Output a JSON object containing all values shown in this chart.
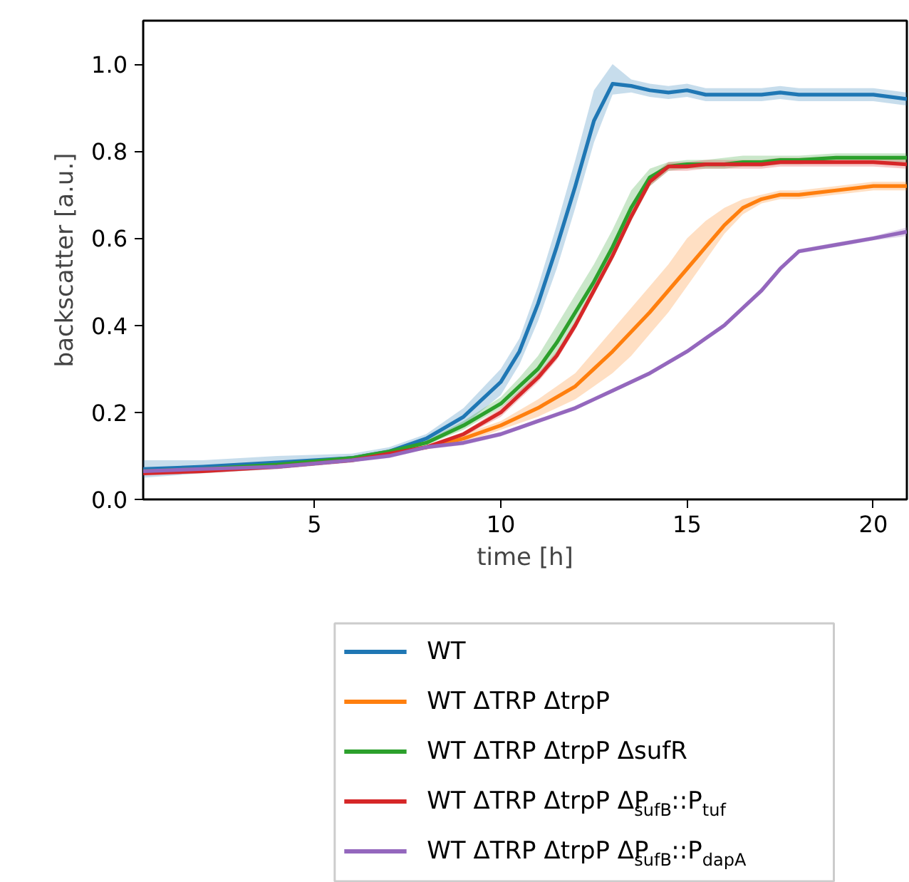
{
  "chart_data": {
    "type": "line",
    "xlabel": "time [h]",
    "ylabel": "backscatter [a.u.]",
    "xlim": [
      0.4,
      20.9
    ],
    "ylim": [
      0,
      1.1
    ],
    "xticks": [
      5,
      10,
      15,
      20
    ],
    "yticks": [
      {
        "value": 0,
        "label": "0.0"
      },
      0.2,
      0.4,
      0.6,
      0.8,
      {
        "value": 1,
        "label": "1.0"
      }
    ],
    "legend": "bottom",
    "line_style": "solid",
    "x": [
      0.4,
      2,
      4,
      6,
      7,
      8,
      9,
      10,
      10.5,
      11,
      11.5,
      12,
      12.5,
      13,
      13.5,
      14,
      14.5,
      15,
      15.5,
      16,
      16.5,
      17,
      17.5,
      18,
      19,
      20,
      20.9
    ],
    "series": [
      {
        "name": "WT",
        "color": "#1f77b4",
        "values": [
          0.07,
          0.075,
          0.085,
          0.095,
          0.11,
          0.14,
          0.19,
          0.27,
          0.34,
          0.45,
          0.58,
          0.72,
          0.87,
          0.955,
          0.95,
          0.94,
          0.935,
          0.94,
          0.93,
          0.93,
          0.93,
          0.93,
          0.935,
          0.93,
          0.93,
          0.93,
          0.92
        ],
        "lower": [
          0.05,
          0.06,
          0.07,
          0.085,
          0.1,
          0.13,
          0.17,
          0.24,
          0.31,
          0.41,
          0.53,
          0.67,
          0.82,
          0.93,
          0.935,
          0.925,
          0.92,
          0.925,
          0.915,
          0.915,
          0.915,
          0.915,
          0.92,
          0.915,
          0.915,
          0.915,
          0.905
        ],
        "upper": [
          0.09,
          0.09,
          0.1,
          0.105,
          0.12,
          0.15,
          0.21,
          0.3,
          0.37,
          0.49,
          0.63,
          0.78,
          0.94,
          1.0,
          0.965,
          0.955,
          0.95,
          0.955,
          0.945,
          0.945,
          0.945,
          0.945,
          0.95,
          0.945,
          0.945,
          0.945,
          0.935
        ]
      },
      {
        "name": "WT ΔTRP ΔtrpP",
        "color": "#ff7f0e",
        "values": [
          null,
          null,
          null,
          null,
          0.105,
          0.12,
          0.14,
          0.17,
          0.19,
          0.21,
          0.235,
          0.26,
          0.3,
          0.34,
          0.385,
          0.43,
          0.48,
          0.53,
          0.58,
          0.63,
          0.67,
          0.69,
          0.7,
          0.7,
          0.71,
          0.72,
          0.72
        ],
        "lower": [
          0.06,
          0.065,
          0.075,
          0.085,
          0.1,
          0.115,
          0.13,
          0.16,
          0.175,
          0.19,
          0.21,
          0.23,
          0.26,
          0.29,
          0.33,
          0.38,
          0.43,
          0.49,
          0.55,
          0.61,
          0.655,
          0.68,
          0.69,
          0.69,
          0.7,
          0.71,
          0.71
        ],
        "upper": [
          0.07,
          0.075,
          0.085,
          0.095,
          0.11,
          0.125,
          0.15,
          0.18,
          0.205,
          0.23,
          0.26,
          0.29,
          0.34,
          0.39,
          0.44,
          0.49,
          0.54,
          0.6,
          0.64,
          0.67,
          0.69,
          0.7,
          0.71,
          0.71,
          0.72,
          0.73,
          0.73
        ]
      },
      {
        "name": "WT ΔTRP ΔtrpP ΔsufR",
        "color": "#2ca02c",
        "values": [
          0.065,
          0.07,
          0.08,
          0.095,
          0.11,
          0.13,
          0.17,
          0.22,
          0.26,
          0.3,
          0.36,
          0.43,
          0.5,
          0.58,
          0.67,
          0.74,
          0.765,
          0.77,
          0.77,
          0.77,
          0.775,
          0.775,
          0.78,
          0.78,
          0.785,
          0.785,
          0.785
        ],
        "lower": [
          0.06,
          0.065,
          0.075,
          0.09,
          0.105,
          0.125,
          0.16,
          0.21,
          0.245,
          0.28,
          0.33,
          0.4,
          0.47,
          0.55,
          0.64,
          0.72,
          0.755,
          0.76,
          0.76,
          0.76,
          0.765,
          0.765,
          0.77,
          0.77,
          0.775,
          0.775,
          0.775
        ],
        "upper": [
          0.07,
          0.075,
          0.085,
          0.1,
          0.115,
          0.135,
          0.18,
          0.235,
          0.28,
          0.33,
          0.4,
          0.47,
          0.54,
          0.62,
          0.71,
          0.76,
          0.775,
          0.78,
          0.78,
          0.785,
          0.79,
          0.79,
          0.79,
          0.79,
          0.795,
          0.795,
          0.795
        ]
      },
      {
        "name": "WT ΔTRP ΔtrpP ΔP$_{sufB}$::P$_{tuf}$",
        "color": "#d62728",
        "values": [
          0.06,
          0.065,
          0.075,
          0.09,
          0.105,
          0.12,
          0.15,
          0.2,
          0.24,
          0.28,
          0.33,
          0.4,
          0.48,
          0.56,
          0.65,
          0.73,
          0.765,
          0.765,
          0.77,
          0.77,
          0.77,
          0.77,
          0.775,
          0.775,
          0.775,
          0.775,
          0.77
        ],
        "lower": [
          0.055,
          0.06,
          0.07,
          0.085,
          0.1,
          0.115,
          0.145,
          0.19,
          0.23,
          0.27,
          0.32,
          0.39,
          0.47,
          0.55,
          0.64,
          0.72,
          0.755,
          0.755,
          0.76,
          0.76,
          0.76,
          0.76,
          0.765,
          0.765,
          0.765,
          0.765,
          0.76
        ],
        "upper": [
          0.065,
          0.07,
          0.08,
          0.095,
          0.11,
          0.125,
          0.155,
          0.21,
          0.25,
          0.29,
          0.34,
          0.41,
          0.49,
          0.57,
          0.66,
          0.74,
          0.775,
          0.775,
          0.78,
          0.78,
          0.78,
          0.78,
          0.785,
          0.785,
          0.785,
          0.785,
          0.78
        ]
      },
      {
        "name": "WT ΔTRP ΔtrpP ΔP$_{sufB}$::P$_{dapA}$",
        "color": "#9467bd",
        "values": [
          0.065,
          0.07,
          0.075,
          0.09,
          0.1,
          0.12,
          0.13,
          0.15,
          0.165,
          0.18,
          0.195,
          0.21,
          0.23,
          0.25,
          0.27,
          0.29,
          0.315,
          0.34,
          0.37,
          0.4,
          0.44,
          0.48,
          0.53,
          0.57,
          0.585,
          0.6,
          0.615
        ],
        "lower": [
          0.06,
          0.065,
          0.07,
          0.085,
          0.095,
          0.115,
          0.125,
          0.145,
          0.16,
          0.175,
          0.19,
          0.205,
          0.225,
          0.245,
          0.265,
          0.285,
          0.31,
          0.335,
          0.365,
          0.395,
          0.435,
          0.475,
          0.525,
          0.565,
          0.58,
          0.595,
          0.605
        ],
        "upper": [
          0.07,
          0.075,
          0.08,
          0.095,
          0.105,
          0.125,
          0.135,
          0.155,
          0.17,
          0.185,
          0.2,
          0.215,
          0.235,
          0.255,
          0.275,
          0.295,
          0.32,
          0.345,
          0.375,
          0.405,
          0.445,
          0.485,
          0.535,
          0.575,
          0.59,
          0.605,
          0.625
        ]
      }
    ]
  }
}
